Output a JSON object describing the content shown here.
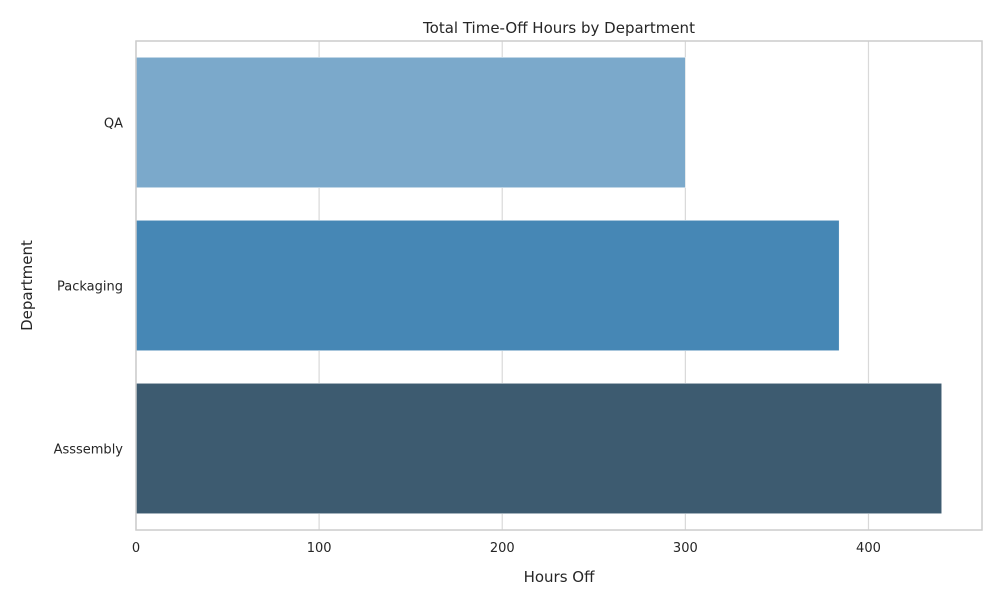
{
  "chart_data": {
    "type": "bar",
    "orientation": "horizontal",
    "title": "Total Time-Off Hours by Department",
    "xlabel": "Hours Off",
    "ylabel": "Department",
    "categories": [
      "QA",
      "Packaging",
      "Asssembly"
    ],
    "values": [
      300,
      384,
      440
    ],
    "xlim": [
      0,
      462
    ],
    "xticks": [
      0,
      100,
      200,
      300,
      400
    ],
    "grid": true,
    "legend": "none",
    "colors": [
      "#7ba9cb",
      "#4687b5",
      "#3d5b70"
    ]
  }
}
